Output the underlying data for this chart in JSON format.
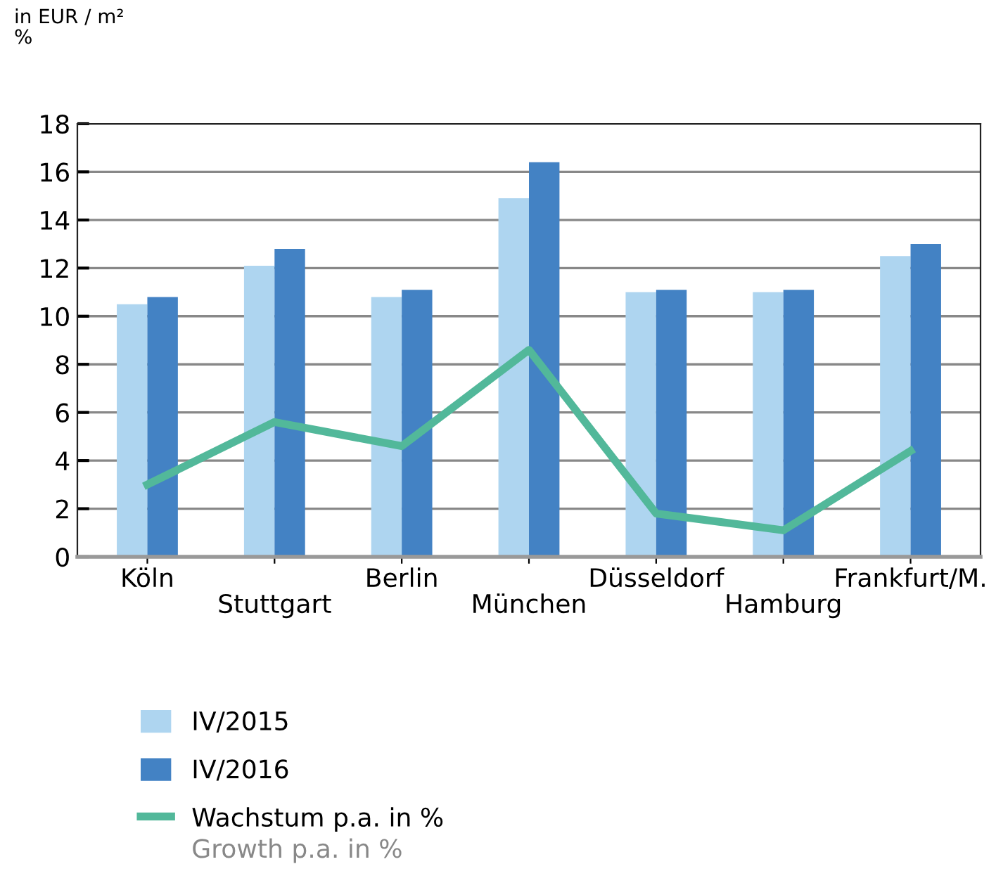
{
  "chart_data": {
    "type": "bar",
    "ylabel": "in EUR / m²\n%",
    "categories": [
      "Köln",
      "Stuttgart",
      "Berlin",
      "München",
      "Düsseldorf",
      "Hamburg",
      "Frankfurt/M."
    ],
    "series": [
      {
        "name": "IV/2015",
        "color": "#aed5f0",
        "values": [
          10.5,
          12.1,
          10.8,
          14.9,
          11.0,
          11.0,
          12.5
        ]
      },
      {
        "name": "IV/2016",
        "color": "#4382c4",
        "values": [
          10.8,
          12.8,
          11.1,
          16.4,
          11.1,
          11.1,
          13.0
        ]
      },
      {
        "name": "Wachstum p.a. in %",
        "type": "line",
        "color": "#52b89a",
        "values": [
          3.0,
          5.6,
          4.6,
          8.6,
          1.8,
          1.1,
          4.4
        ]
      }
    ],
    "ylim": [
      0,
      18
    ],
    "yticks": [
      0,
      2,
      4,
      6,
      8,
      10,
      12,
      14,
      16,
      18
    ],
    "grid": "y",
    "legend": "bottom left",
    "marker": "none",
    "line_style": "solid",
    "annotations": [
      "Growth p.a. in %"
    ]
  }
}
